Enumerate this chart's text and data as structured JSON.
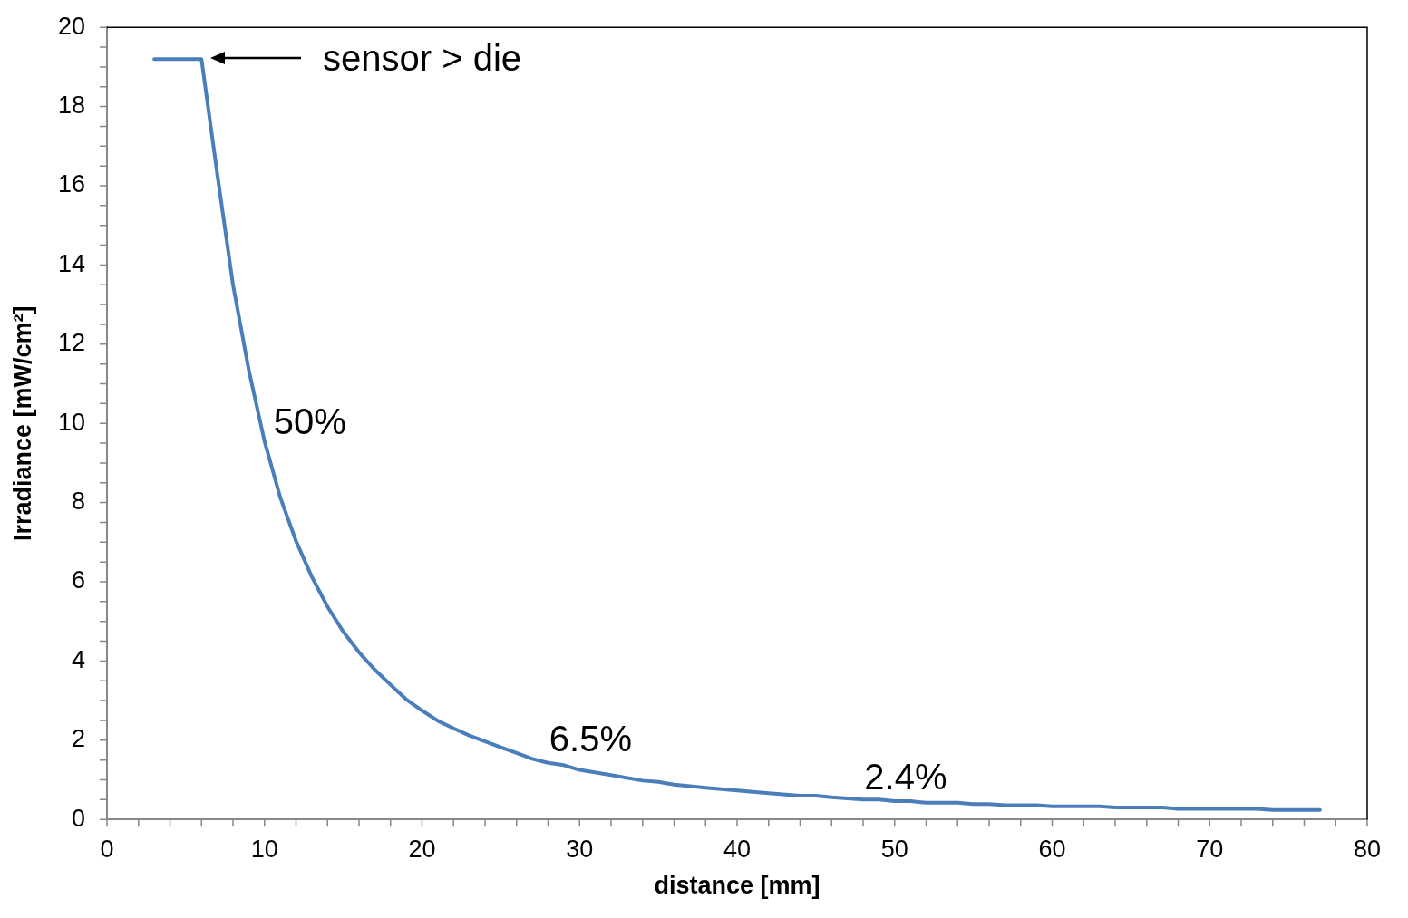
{
  "chart_data": {
    "type": "line",
    "xlabel": "distance [mm]",
    "ylabel": "Irradiance [mW/cm²]",
    "x": [
      3,
      6,
      7,
      8,
      9,
      10,
      11,
      12,
      13,
      14,
      15,
      16,
      17,
      18,
      19,
      20,
      21,
      22,
      23,
      24,
      25,
      26,
      27,
      28,
      29,
      30,
      32,
      34,
      35,
      36,
      38,
      40,
      42,
      44,
      45,
      46,
      48,
      49,
      50,
      51,
      52,
      54,
      55,
      56,
      57,
      59,
      60,
      63,
      64,
      67,
      68,
      73,
      74,
      77
    ],
    "series": [
      {
        "color": "#4a7ebb",
        "values": [
          19.2,
          19.2,
          16.3,
          13.5,
          11.35,
          9.55,
          8.13,
          7.03,
          6.13,
          5.37,
          4.74,
          4.22,
          3.78,
          3.4,
          3.03,
          2.75,
          2.49,
          2.3,
          2.12,
          1.97,
          1.82,
          1.68,
          1.53,
          1.43,
          1.37,
          1.25,
          1.12,
          0.98,
          0.95,
          0.88,
          0.8,
          0.73,
          0.66,
          0.6,
          0.6,
          0.56,
          0.5,
          0.5,
          0.46,
          0.46,
          0.42,
          0.42,
          0.39,
          0.39,
          0.36,
          0.36,
          0.33,
          0.33,
          0.3,
          0.3,
          0.27,
          0.27,
          0.24,
          0.24
        ]
      }
    ],
    "xlim": [
      0,
      80
    ],
    "xticks": [
      0,
      10,
      20,
      30,
      40,
      50,
      60,
      70,
      80
    ],
    "ylim": [
      0,
      20
    ],
    "yticks": [
      0,
      2,
      4,
      6,
      8,
      10,
      12,
      14,
      16,
      18,
      20
    ],
    "grid": false,
    "legend": false,
    "marker": "none",
    "line_style": "solid",
    "annotations": [
      "sensor > die",
      {
        "text": "50%",
        "x": 10,
        "y": 9.5
      },
      {
        "text": "6.5%",
        "x": 27.5,
        "y": 1.5
      },
      {
        "text": "2.4%",
        "x": 47.5,
        "y": 0.52
      }
    ]
  }
}
